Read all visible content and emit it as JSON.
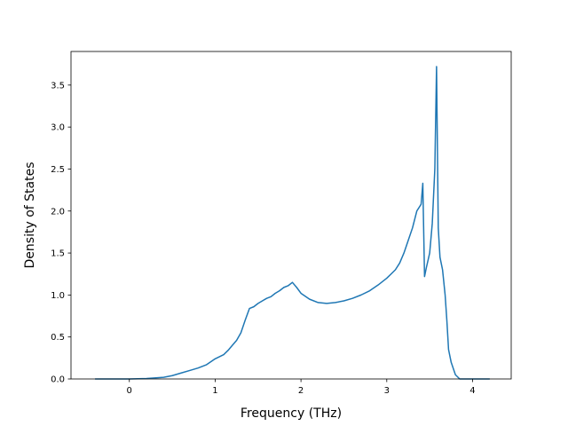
{
  "chart_data": {
    "type": "line",
    "xlabel": "Frequency (THz)",
    "ylabel": "Density of States",
    "xlim": [
      -0.68,
      4.45
    ],
    "ylim": [
      0,
      3.9
    ],
    "xticks": [
      0,
      1,
      2,
      3,
      4
    ],
    "yticks": [
      0.0,
      0.5,
      1.0,
      1.5,
      2.0,
      2.5,
      3.0,
      3.5
    ],
    "xtick_labels": [
      "0",
      "1",
      "2",
      "3",
      "4"
    ],
    "ytick_labels": [
      "0.0",
      "0.5",
      "1.0",
      "1.5",
      "2.0",
      "2.5",
      "3.0",
      "3.5"
    ],
    "grid": false,
    "line_color": "#1f77b4",
    "series": [
      {
        "x": [
          -0.4,
          0.0,
          0.2,
          0.4,
          0.5,
          0.6,
          0.7,
          0.8,
          0.9,
          1.0,
          1.1,
          1.15,
          1.2,
          1.25,
          1.3,
          1.35,
          1.4,
          1.45,
          1.5,
          1.55,
          1.6,
          1.65,
          1.7,
          1.75,
          1.8,
          1.85,
          1.9,
          1.95,
          2.0,
          2.1,
          2.2,
          2.3,
          2.4,
          2.5,
          2.6,
          2.7,
          2.8,
          2.9,
          3.0,
          3.05,
          3.1,
          3.15,
          3.2,
          3.25,
          3.3,
          3.35,
          3.4,
          3.42,
          3.44,
          3.46,
          3.5,
          3.53,
          3.56,
          3.58,
          3.6,
          3.62,
          3.65,
          3.68,
          3.7,
          3.72,
          3.75,
          3.8,
          3.85,
          3.9,
          4.0,
          4.2
        ],
        "y": [
          0.0,
          0.0,
          0.005,
          0.02,
          0.04,
          0.07,
          0.1,
          0.13,
          0.17,
          0.24,
          0.29,
          0.34,
          0.4,
          0.46,
          0.55,
          0.7,
          0.84,
          0.86,
          0.9,
          0.93,
          0.96,
          0.98,
          1.02,
          1.05,
          1.09,
          1.11,
          1.15,
          1.09,
          1.02,
          0.95,
          0.91,
          0.9,
          0.91,
          0.93,
          0.96,
          1.0,
          1.05,
          1.12,
          1.2,
          1.25,
          1.3,
          1.38,
          1.5,
          1.65,
          1.8,
          2.0,
          2.08,
          2.33,
          1.22,
          1.32,
          1.5,
          1.85,
          2.5,
          3.72,
          1.8,
          1.45,
          1.3,
          1.0,
          0.7,
          0.35,
          0.2,
          0.05,
          0.0,
          0.0,
          0.0,
          0.0
        ]
      }
    ]
  }
}
